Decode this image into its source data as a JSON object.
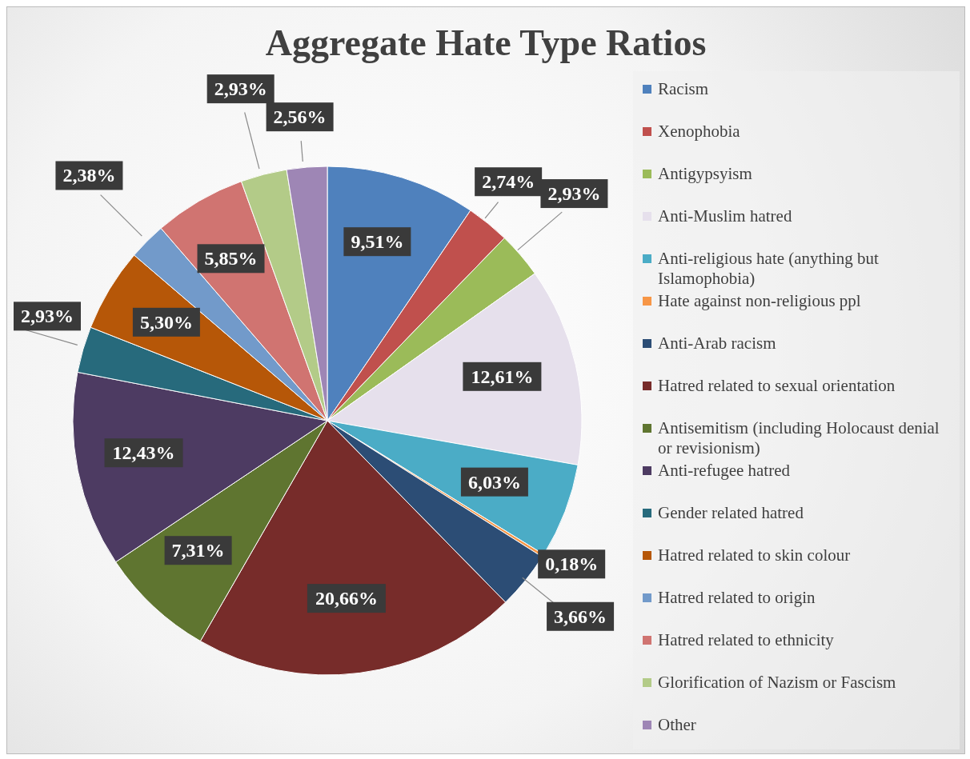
{
  "chart_data": {
    "type": "pie",
    "title": "Aggregate Hate Type Ratios",
    "categories": [
      "Racism",
      "Xenophobia",
      "Antigypsyism",
      "Anti-Muslim hatred",
      "Anti-religious hate (anything but Islamophobia)",
      "Hate against non-religious ppl",
      "Anti-Arab racism",
      "Hatred related to sexual orientation",
      "Antisemitism (including Holocaust denial or revisionism)",
      "Anti-refugee hatred",
      "Gender related hatred",
      "Hatred related to skin colour",
      "Hatred related to origin",
      "Hatred related to ethnicity",
      "Glorification of Nazism or Fascism",
      "Other"
    ],
    "values": [
      9.51,
      2.74,
      2.93,
      12.61,
      6.03,
      0.18,
      3.66,
      20.66,
      7.31,
      12.43,
      2.93,
      5.3,
      2.38,
      5.85,
      2.93,
      2.56
    ],
    "value_labels": [
      "9,51%",
      "2,74%",
      "2,93%",
      "12,61%",
      "6,03%",
      "0,18%",
      "3,66%",
      "20,66%",
      "7,31%",
      "12,43%",
      "2,93%",
      "5,30%",
      "2,38%",
      "5,85%",
      "2,93%",
      "2,56%"
    ],
    "colors": [
      "#4f81bd",
      "#c0504d",
      "#9bbb59",
      "#e6e0ec",
      "#4bacc6",
      "#f79646",
      "#2c4d75",
      "#772c2a",
      "#5f7530",
      "#4d3b62",
      "#276a7c",
      "#b65708",
      "#729aca",
      "#d07471",
      "#b3cb88",
      "#9e86b5"
    ],
    "legend": "right"
  }
}
